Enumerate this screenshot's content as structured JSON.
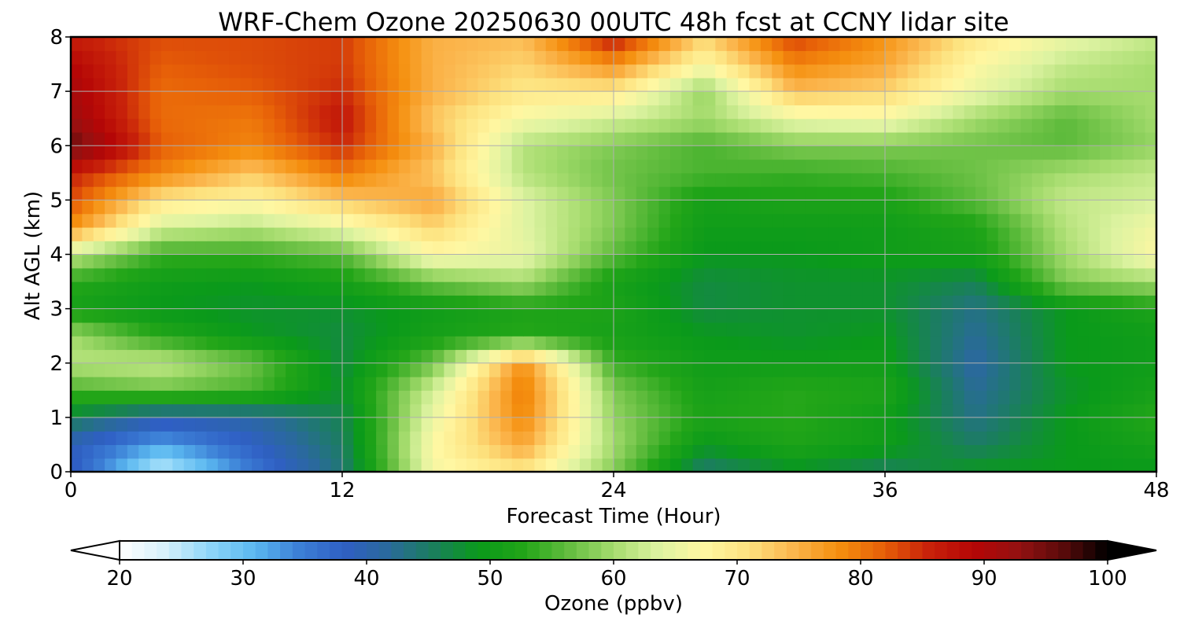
{
  "chart_data": {
    "type": "heatmap",
    "title": "WRF-Chem Ozone  20250630 00UTC 48h fcst at CCNY lidar site",
    "xlabel": "Forecast Time (Hour)",
    "ylabel": "Alt AGL (km)",
    "xlim": [
      0,
      48
    ],
    "ylim": [
      0,
      8
    ],
    "xticks": [
      0,
      12,
      24,
      36,
      48
    ],
    "yticks": [
      0,
      1,
      2,
      3,
      4,
      5,
      6,
      7,
      8
    ],
    "grid": true,
    "colorbar": {
      "label": "Ozone  (ppbv)",
      "range": [
        20,
        100
      ],
      "ticks": [
        20,
        30,
        40,
        50,
        60,
        70,
        80,
        90,
        100
      ],
      "extend": "both",
      "orientation": "horizontal",
      "placement": "bottom",
      "colors": [
        "#ffffff",
        "#d6f0fb",
        "#8fd6f8",
        "#5bb8f0",
        "#3c7fd6",
        "#2f5fc4",
        "#2a6a9a",
        "#1a7f5c",
        "#0a9a1a",
        "#22a518",
        "#63bd3f",
        "#a6dc6e",
        "#ddf3a1",
        "#fff7a2",
        "#fde27f",
        "#fbb54c",
        "#f5900f",
        "#e76008",
        "#c8220a",
        "#b50606",
        "#951111",
        "#5a0a0a",
        "#000000"
      ]
    },
    "x": [
      0,
      4,
      8,
      12,
      16,
      20,
      24,
      28,
      32,
      36,
      40,
      44,
      48
    ],
    "y": [
      0,
      0.5,
      1,
      1.5,
      2,
      2.5,
      3,
      3.5,
      4,
      4.5,
      5,
      5.5,
      6,
      6.5,
      7,
      7.5,
      8
    ],
    "z": [
      [
        39,
        24,
        35,
        44,
        66,
        70,
        58,
        44,
        48,
        45,
        49,
        49,
        49
      ],
      [
        39,
        32,
        38,
        45,
        67,
        76,
        60,
        49,
        52,
        50,
        45,
        49,
        51
      ],
      [
        46,
        40,
        41,
        46,
        65,
        79,
        59,
        52,
        53,
        50,
        43,
        49,
        53
      ],
      [
        55,
        57,
        55,
        48,
        63,
        80,
        58,
        51,
        53,
        52,
        42,
        48,
        51
      ],
      [
        61,
        62,
        57,
        47,
        57,
        78,
        54,
        50,
        50,
        50,
        41,
        49,
        50
      ],
      [
        60,
        53,
        49,
        47,
        51,
        53,
        51,
        49,
        48,
        49,
        42,
        49,
        50
      ],
      [
        51,
        49,
        48,
        48,
        50,
        52,
        52,
        47,
        48,
        48,
        43,
        49,
        52
      ],
      [
        53,
        50,
        49,
        51,
        57,
        60,
        51,
        47,
        48,
        48,
        46,
        58,
        60
      ],
      [
        62,
        54,
        54,
        56,
        67,
        65,
        56,
        49,
        49,
        50,
        51,
        60,
        67
      ],
      [
        78,
        63,
        61,
        65,
        72,
        64,
        58,
        50,
        50,
        50,
        52,
        61,
        66
      ],
      [
        83,
        70,
        68,
        73,
        76,
        64,
        58,
        51,
        52,
        52,
        56,
        62,
        63
      ],
      [
        86,
        79,
        73,
        80,
        73,
        61,
        57,
        55,
        54,
        55,
        57,
        60,
        62
      ],
      [
        96,
        82,
        79,
        85,
        75,
        61,
        58,
        55,
        58,
        58,
        57,
        56,
        59
      ],
      [
        92,
        81,
        80,
        87,
        73,
        66,
        63,
        60,
        65,
        66,
        60,
        56,
        60
      ],
      [
        91,
        81,
        82,
        85,
        75,
        70,
        70,
        59,
        74,
        72,
        65,
        60,
        60
      ],
      [
        89,
        82,
        83,
        84,
        75,
        72,
        78,
        67,
        79,
        76,
        67,
        62,
        60
      ],
      [
        86,
        83,
        83,
        84,
        75,
        74,
        87,
        72,
        84,
        78,
        70,
        65,
        62
      ]
    ]
  }
}
